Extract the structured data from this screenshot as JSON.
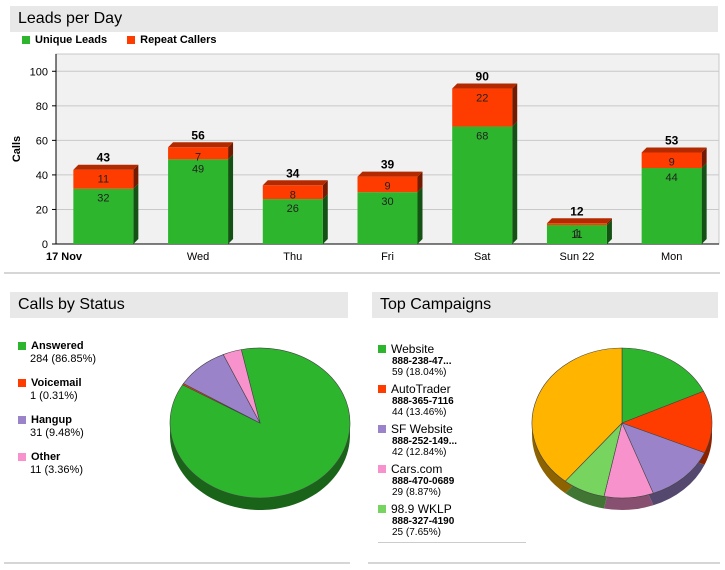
{
  "leads": {
    "title": "Leads per Day",
    "legend": [
      {
        "label": "Unique Leads",
        "color": "#2db52d"
      },
      {
        "label": "Repeat Callers",
        "color": "#ff3c00"
      }
    ]
  },
  "status": {
    "title": "Calls by Status",
    "entries": [
      {
        "name": "Answered",
        "value": "284  (86.85%)",
        "color": "#2db52d"
      },
      {
        "name": "Voicemail",
        "value": "1  (0.31%)",
        "color": "#ff3c00"
      },
      {
        "name": "Hangup",
        "value": "31  (9.48%)",
        "color": "#9b83c9"
      },
      {
        "name": "Other",
        "value": "11  (3.36%)",
        "color": "#f792cc"
      }
    ]
  },
  "campaigns": {
    "title": "Top Campaigns",
    "entries": [
      {
        "name": "Website",
        "phone": "888-238-47...",
        "value": "59  (18.04%)",
        "color": "#2db52d"
      },
      {
        "name": "AutoTrader",
        "phone": "888-365-7116",
        "value": "44  (13.46%)",
        "color": "#ff3c00"
      },
      {
        "name": "SF Website",
        "phone": "888-252-149...",
        "value": "42  (12.84%)",
        "color": "#9b83c9"
      },
      {
        "name": "Cars.com",
        "phone": "888-470-0689",
        "value": "29  (8.87%)",
        "color": "#f792cc"
      },
      {
        "name": "98.9 WKLP",
        "phone": "888-327-4190",
        "value": "25  (7.65%)",
        "color": "#77d45f"
      }
    ]
  },
  "chart_data": [
    {
      "type": "bar",
      "stacked": true,
      "ylabel": "Calls",
      "ylim": [
        0,
        110
      ],
      "yticks": [
        0,
        20,
        40,
        60,
        80,
        100
      ],
      "grid": true,
      "categories": [
        "17 Nov",
        "Wed",
        "Thu",
        "Fri",
        "Sat",
        "Sun 22",
        "Mon"
      ],
      "series": [
        {
          "name": "Unique Leads",
          "color": "#2db52d",
          "values": [
            32,
            49,
            26,
            30,
            68,
            11,
            44
          ]
        },
        {
          "name": "Repeat Callers",
          "color": "#ff3c00",
          "values": [
            11,
            7,
            8,
            9,
            22,
            1,
            9
          ]
        }
      ],
      "totals": [
        43,
        56,
        34,
        39,
        90,
        12,
        53
      ]
    },
    {
      "type": "pie",
      "labels": [
        "Answered",
        "Voicemail",
        "Hangup",
        "Other"
      ],
      "values": [
        284,
        1,
        31,
        11
      ],
      "colors": [
        "#2db52d",
        "#ff3c00",
        "#9b83c9",
        "#f792cc"
      ]
    },
    {
      "type": "pie",
      "labels": [
        "Website",
        "AutoTrader",
        "SF Website",
        "Cars.com",
        "98.9 WKLP",
        ""
      ],
      "values": [
        59,
        44,
        42,
        29,
        25,
        128
      ],
      "colors": [
        "#2db52d",
        "#ff3c00",
        "#9b83c9",
        "#f792cc",
        "#77d45f",
        "#ffb400"
      ]
    }
  ]
}
